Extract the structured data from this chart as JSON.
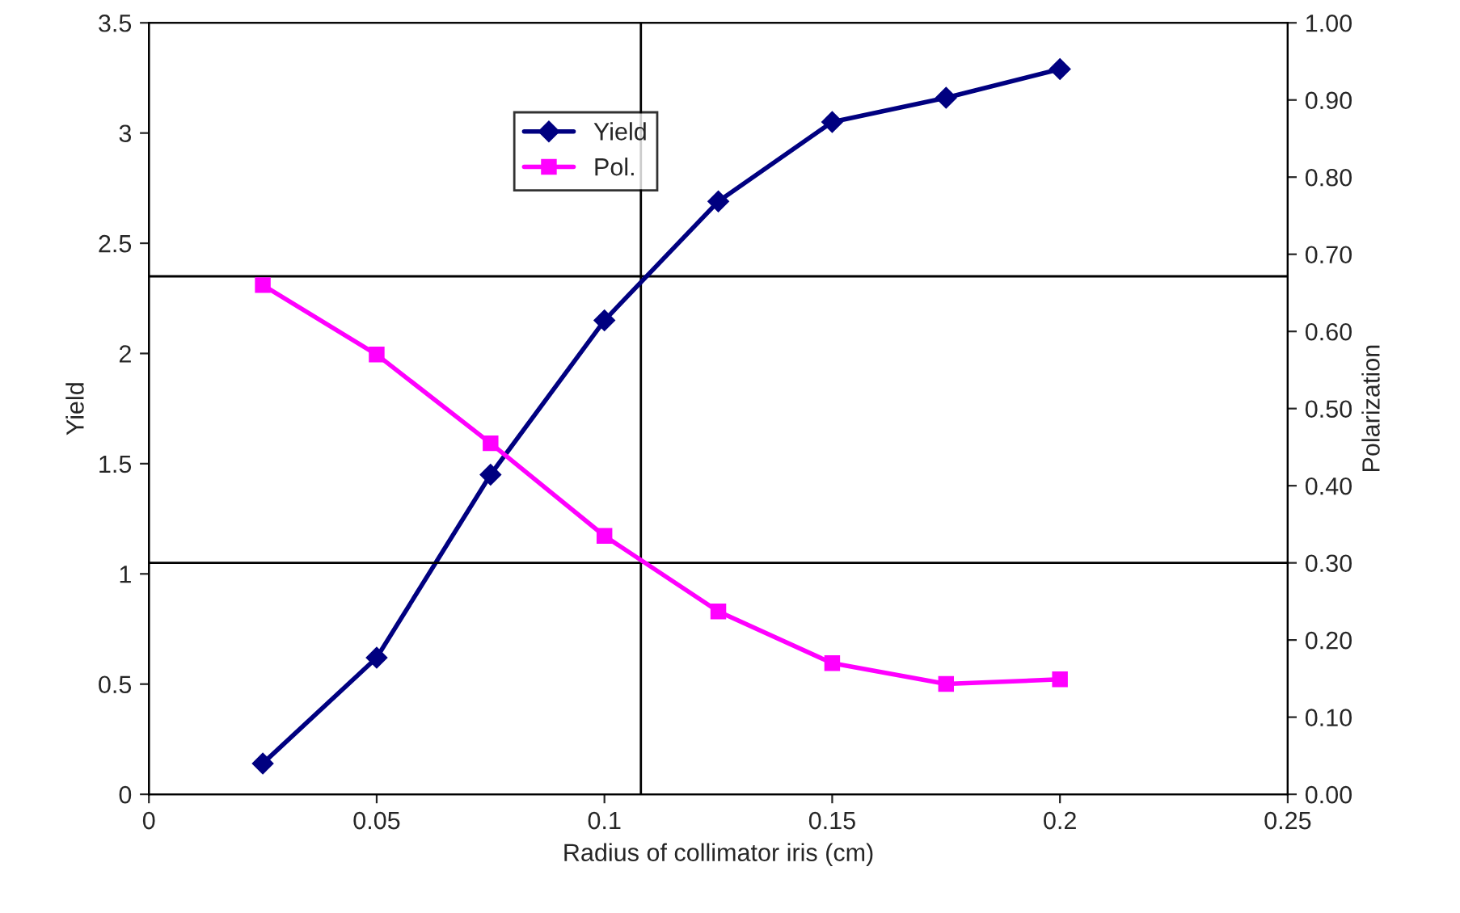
{
  "chart_data": {
    "type": "line",
    "xlabel": "Radius of collimator iris (cm)",
    "ylabel": "Yield",
    "y2label": "Polarization",
    "x": [
      0.025,
      0.05,
      0.075,
      0.1,
      0.125,
      0.15,
      0.175,
      0.2
    ],
    "series": [
      {
        "name": "Yield",
        "color": "#000080",
        "marker": "diamond",
        "values": [
          0.14,
          0.62,
          1.45,
          2.15,
          2.69,
          3.05,
          3.16,
          3.29
        ]
      },
      {
        "name": "Pol.",
        "color": "#ff00ff",
        "marker": "square",
        "axis": "y2",
        "values": [
          0.66,
          0.57,
          0.455,
          0.335,
          0.237,
          0.17,
          0.143,
          0.149
        ]
      }
    ],
    "xlim": [
      0,
      0.25
    ],
    "xticks": [
      {
        "value": 0,
        "label": "0"
      },
      0.05,
      0.1,
      0.15,
      0.2,
      0.25
    ],
    "ylim": [
      0,
      3.5
    ],
    "yticks": [
      {
        "value": 0,
        "label": "0"
      },
      0.5,
      {
        "value": 1,
        "label": "1"
      },
      1.5,
      {
        "value": 2,
        "label": "2"
      },
      2.5,
      {
        "value": 3,
        "label": "3"
      },
      3.5
    ],
    "y2lim": [
      0,
      1
    ],
    "y2ticks": [
      {
        "value": 0,
        "label": "0.00"
      },
      {
        "value": 0.1,
        "label": "0.10"
      },
      {
        "value": 0.2,
        "label": "0.20"
      },
      {
        "value": 0.3,
        "label": "0.30"
      },
      {
        "value": 0.4,
        "label": "0.40"
      },
      {
        "value": 0.5,
        "label": "0.50"
      },
      {
        "value": 0.6,
        "label": "0.60"
      },
      {
        "value": 0.7,
        "label": "0.70"
      },
      {
        "value": 0.8,
        "label": "0.80"
      },
      {
        "value": 0.9,
        "label": "0.90"
      },
      {
        "value": 1,
        "label": "1.00"
      }
    ],
    "ref_lines": [
      {
        "axis": "y",
        "value": 2.35,
        "color": "#000000"
      },
      {
        "axis": "x",
        "value": 0.108,
        "color": "#000000"
      },
      {
        "axis": "y2",
        "value": 0.3,
        "color": "#000000"
      }
    ],
    "grid": false,
    "legend": "top",
    "line_style": "solid"
  }
}
